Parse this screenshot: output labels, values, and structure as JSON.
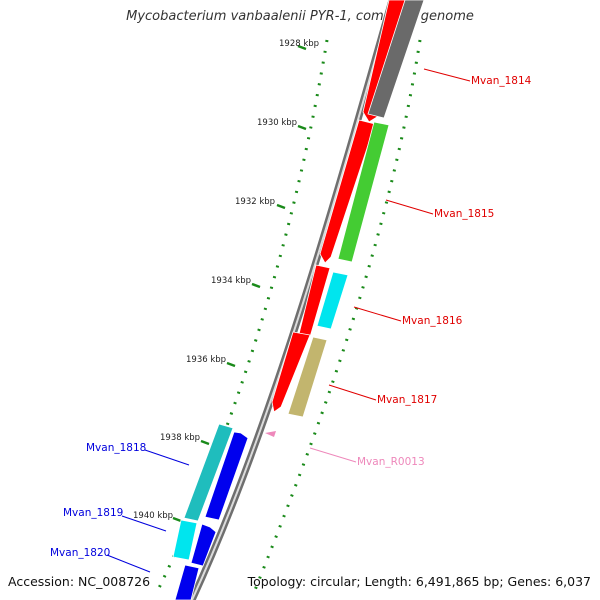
{
  "title": "Mycobacterium vanbaalenii PYR-1, complete genome",
  "footer": {
    "accession": "Accession: NC_008726",
    "summary": "Topology: circular; Length: 6,491,865 bp; Genes: 6,037"
  },
  "colors": {
    "backbone": "#7f7f7f",
    "gc_tick": "#1a8a1a",
    "label_red": "#e00000",
    "label_blue": "#0000dd",
    "label_pink": "#ee88bb",
    "gene_red": "#ff0000",
    "gene_grey": "#6a6a6a",
    "gene_green": "#44cc33",
    "gene_cyan": "#00e5ee",
    "gene_olive": "#c2b56e",
    "gene_blue": "#0000ee",
    "gene_teal": "#1fbdbd",
    "rna_pink": "#ee88bb"
  },
  "scale_ticks": [
    "1928 kbp",
    "1930 kbp",
    "1932 kbp",
    "1934 kbp",
    "1936 kbp",
    "1938 kbp",
    "1940 kbp"
  ],
  "gene_labels": [
    {
      "id": "Mvan_1814",
      "color": "label_red"
    },
    {
      "id": "Mvan_1815",
      "color": "label_red"
    },
    {
      "id": "Mvan_1816",
      "color": "label_red"
    },
    {
      "id": "Mvan_1817",
      "color": "label_red"
    },
    {
      "id": "Mvan_R0013",
      "color": "label_pink"
    },
    {
      "id": "Mvan_1818",
      "color": "label_blue"
    },
    {
      "id": "Mvan_1819",
      "color": "label_blue"
    },
    {
      "id": "Mvan_1820",
      "color": "label_blue"
    }
  ]
}
